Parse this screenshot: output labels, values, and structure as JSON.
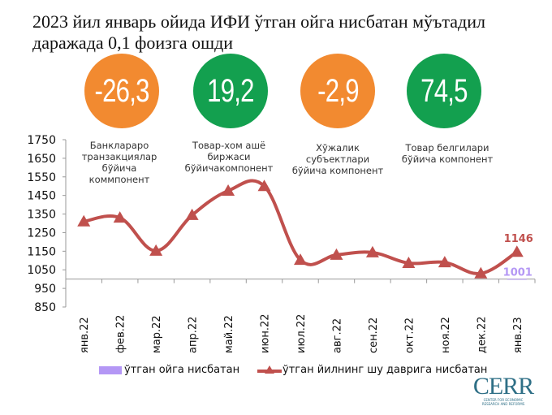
{
  "title": "2023 йил январь ойида ИФИ ўтган ойга нисбатан мўътадил даражада 0,1 фоизга ошди",
  "badges": [
    {
      "value": "-26,3",
      "color": "#F28A30",
      "note": "Банклараро транзакциялар бўйича коммпонент"
    },
    {
      "value": "19,2",
      "color": "#13A04F",
      "note": "Товар-хом ашё биржаси бўйичакомпонент"
    },
    {
      "value": "-2,9",
      "color": "#F28A30",
      "note": "Хўжалик субъектлари бўйича компонент"
    },
    {
      "value": "74,5",
      "color": "#13A04F",
      "note": "Товар белгилари бўйича компонент"
    }
  ],
  "chart_data": {
    "type": "line",
    "categories": [
      "янв.22",
      "фев.22",
      "мар.22",
      "апр.22",
      "май.22",
      "июн.22",
      "июл.22",
      "авг.22",
      "сен.22",
      "окт.22",
      "ноя.22",
      "дек.22",
      "янв.23"
    ],
    "ylim": [
      850,
      1750
    ],
    "yticks": [
      1750,
      1650,
      1550,
      1450,
      1350,
      1250,
      1150,
      1050,
      950,
      850
    ],
    "x_axis_crosses_at": 1000,
    "grid": false,
    "legend_position": "bottom",
    "series": [
      {
        "name": "ўтган ойга нисбатан",
        "type": "bar",
        "color": "#B497F5",
        "values": [
          null,
          null,
          null,
          null,
          null,
          null,
          null,
          null,
          null,
          null,
          null,
          null,
          1001
        ],
        "data_label": "1001"
      },
      {
        "name": "ўтган йилнинг шу даврига нисбатан",
        "type": "line",
        "color": "#C0504D",
        "marker": "triangle",
        "values": [
          1310,
          1330,
          1152,
          1344,
          1475,
          1500,
          1103,
          1130,
          1143,
          1086,
          1090,
          1030,
          1146
        ],
        "data_label": "1146"
      }
    ]
  },
  "logo": {
    "name": "CERR",
    "tagline": "CENTER FOR ECONOMIC RESEARCH AND REFORMS"
  }
}
